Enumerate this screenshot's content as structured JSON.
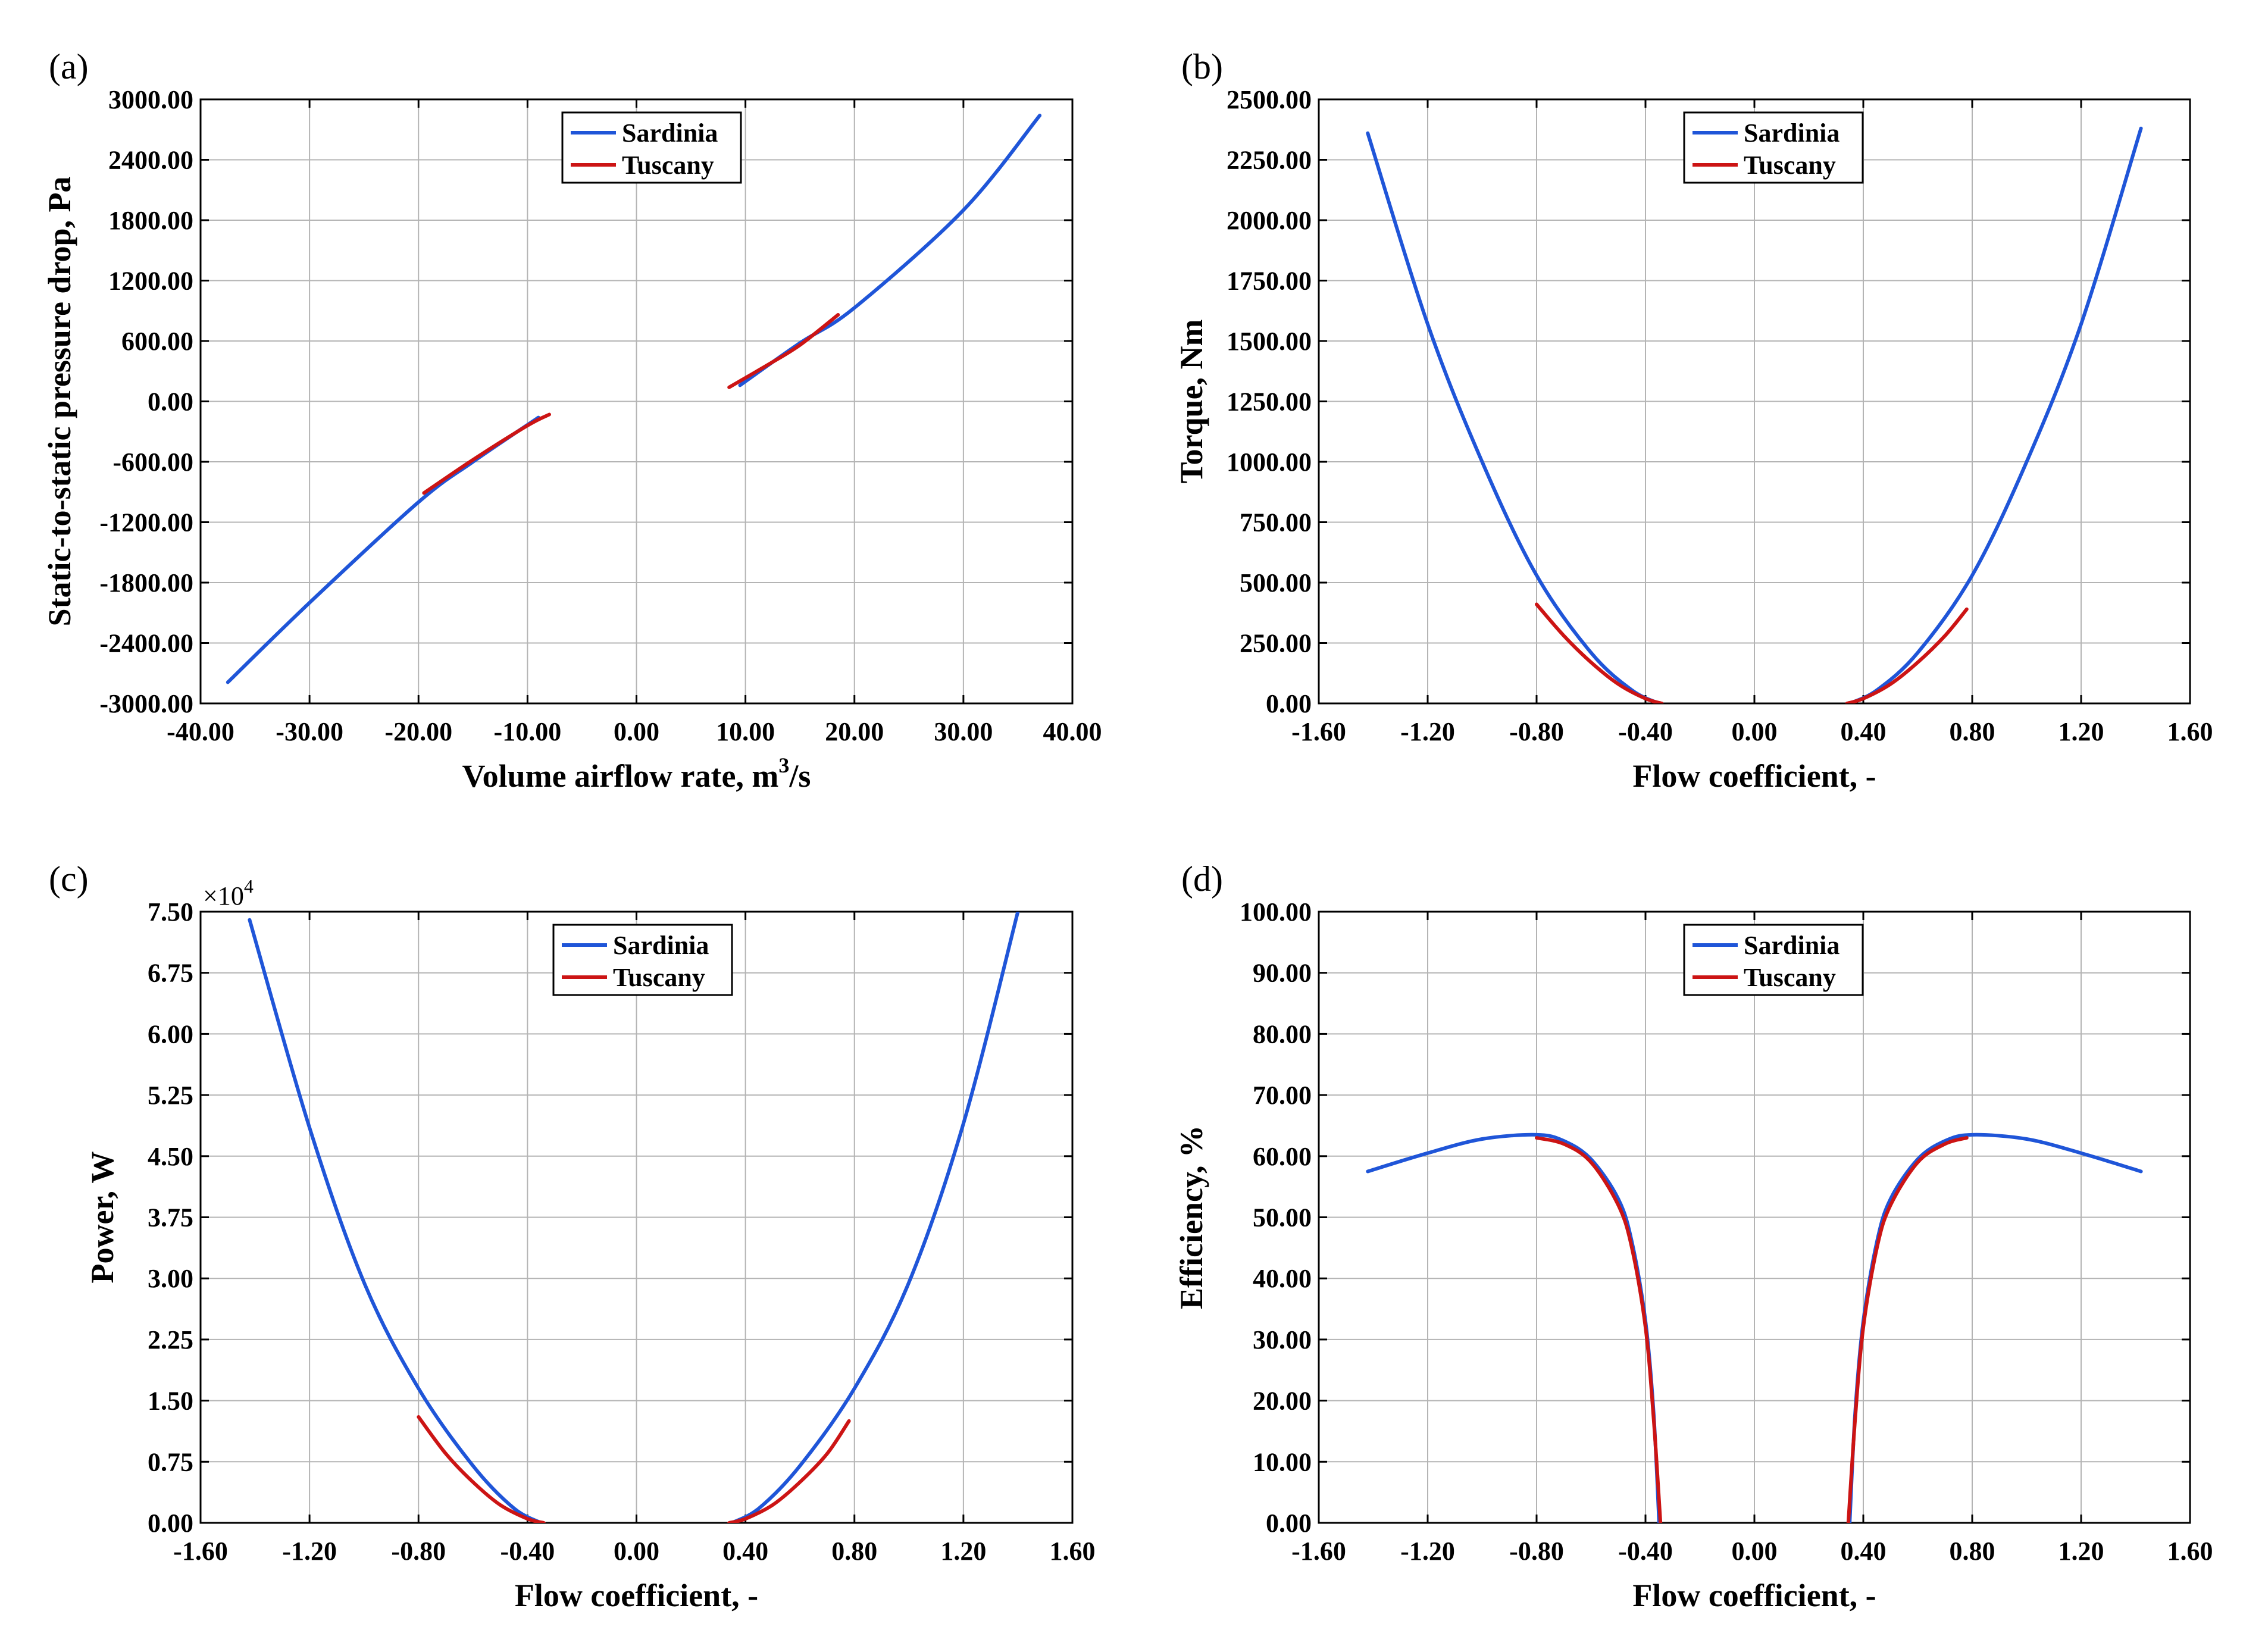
{
  "colors": {
    "sardinia": "#1f55d8",
    "tuscany": "#cc1414",
    "grid": "#b4b4b4",
    "axis": "#000000"
  },
  "chart_data": [
    {
      "type": "line",
      "panel_label": "(a)",
      "xlabel": "Volume airflow rate, m",
      "xlabel_sup": "3",
      "xlabel_suffix": "/s",
      "ylabel": "Static-to-static pressure drop, Pa",
      "xlim": [
        -40,
        40
      ],
      "ylim": [
        -3000,
        3000
      ],
      "xticks": [
        -40,
        -30,
        -20,
        -10,
        0,
        10,
        20,
        30,
        40
      ],
      "xtick_labels": [
        "-40.00",
        "-30.00",
        "-20.00",
        "-10.00",
        "0.00",
        "10.00",
        "20.00",
        "30.00",
        "40.00"
      ],
      "yticks": [
        -3000,
        -2400,
        -1800,
        -1200,
        -600,
        0,
        600,
        1200,
        1800,
        2400,
        3000
      ],
      "ytick_labels": [
        "-3000.00",
        "-2400.00",
        "-1800.00",
        "-1200.00",
        "-600.00",
        "0.00",
        "600.00",
        "1200.00",
        "1800.00",
        "2400.00",
        "3000.00"
      ],
      "legend": [
        "Sardinia",
        "Tuscany"
      ],
      "series": [
        {
          "name": "Sardinia",
          "color_key": "sardinia",
          "segments": [
            [
              [
                -37.5,
                -2790
              ],
              [
                -30,
                -2000
              ],
              [
                -20,
                -1000
              ],
              [
                -15,
                -600
              ],
              [
                -9,
                -160
              ]
            ],
            [
              [
                9.5,
                160
              ],
              [
                15,
                580
              ],
              [
                20,
                930
              ],
              [
                30,
                1900
              ],
              [
                37,
                2840
              ]
            ]
          ]
        },
        {
          "name": "Tuscany",
          "color_key": "tuscany",
          "segments": [
            [
              [
                -19.5,
                -910
              ],
              [
                -15,
                -580
              ],
              [
                -10,
                -240
              ],
              [
                -8,
                -130
              ]
            ],
            [
              [
                8.5,
                140
              ],
              [
                12,
                360
              ],
              [
                15,
                560
              ],
              [
                18.5,
                860
              ]
            ]
          ]
        }
      ]
    },
    {
      "type": "line",
      "panel_label": "(b)",
      "xlabel": "Flow coefficient, -",
      "ylabel": "Torque, Nm",
      "xlim": [
        -1.6,
        1.6
      ],
      "ylim": [
        0,
        2500
      ],
      "xticks": [
        -1.6,
        -1.2,
        -0.8,
        -0.4,
        0,
        0.4,
        0.8,
        1.2,
        1.6
      ],
      "xtick_labels": [
        "-1.60",
        "-1.20",
        "-0.80",
        "-0.40",
        "0.00",
        "0.40",
        "0.80",
        "1.20",
        "1.60"
      ],
      "yticks": [
        0,
        250,
        500,
        750,
        1000,
        1250,
        1500,
        1750,
        2000,
        2250,
        2500
      ],
      "ytick_labels": [
        "0.00",
        "250.00",
        "500.00",
        "750.00",
        "1000.00",
        "1250.00",
        "1500.00",
        "1750.00",
        "2000.00",
        "2250.00",
        "2500.00"
      ],
      "legend": [
        "Sardinia",
        "Tuscany"
      ],
      "series": [
        {
          "name": "Sardinia",
          "color_key": "sardinia",
          "segments": [
            [
              [
                -1.42,
                2360
              ],
              [
                -1.2,
                1570
              ],
              [
                -1.0,
                1000
              ],
              [
                -0.8,
                530
              ],
              [
                -0.6,
                210
              ],
              [
                -0.45,
                55
              ],
              [
                -0.35,
                0
              ]
            ],
            [
              [
                0.35,
                0
              ],
              [
                0.45,
                55
              ],
              [
                0.6,
                210
              ],
              [
                0.8,
                530
              ],
              [
                1.0,
                1000
              ],
              [
                1.2,
                1570
              ],
              [
                1.42,
                2380
              ]
            ]
          ]
        },
        {
          "name": "Tuscany",
          "color_key": "tuscany",
          "segments": [
            [
              [
                -0.8,
                410
              ],
              [
                -0.7,
                280
              ],
              [
                -0.6,
                170
              ],
              [
                -0.5,
                80
              ],
              [
                -0.4,
                20
              ],
              [
                -0.34,
                0
              ]
            ],
            [
              [
                0.34,
                0
              ],
              [
                0.4,
                20
              ],
              [
                0.5,
                80
              ],
              [
                0.6,
                170
              ],
              [
                0.7,
                280
              ],
              [
                0.78,
                390
              ]
            ]
          ]
        }
      ]
    },
    {
      "type": "line",
      "panel_label": "(c)",
      "xlabel": "Flow coefficient, -",
      "ylabel": "Power, W",
      "exponent_label": "×10",
      "exponent_sup": "4",
      "xlim": [
        -1.6,
        1.6
      ],
      "ylim": [
        0,
        7.5
      ],
      "xticks": [
        -1.6,
        -1.2,
        -0.8,
        -0.4,
        0,
        0.4,
        0.8,
        1.2,
        1.6
      ],
      "xtick_labels": [
        "-1.60",
        "-1.20",
        "-0.80",
        "-0.40",
        "0.00",
        "0.40",
        "0.80",
        "1.20",
        "1.60"
      ],
      "yticks": [
        0,
        0.75,
        1.5,
        2.25,
        3.0,
        3.75,
        4.5,
        5.25,
        6.0,
        6.75,
        7.5
      ],
      "ytick_labels": [
        "0.00",
        "0.75",
        "1.50",
        "2.25",
        "3.00",
        "3.75",
        "4.50",
        "5.25",
        "6.00",
        "6.75",
        "7.50"
      ],
      "legend": [
        "Sardinia",
        "Tuscany"
      ],
      "series": [
        {
          "name": "Sardinia",
          "color_key": "sardinia",
          "segments": [
            [
              [
                -1.42,
                7.4
              ],
              [
                -1.2,
                4.85
              ],
              [
                -1.0,
                2.95
              ],
              [
                -0.8,
                1.65
              ],
              [
                -0.6,
                0.7
              ],
              [
                -0.45,
                0.18
              ],
              [
                -0.35,
                0
              ]
            ],
            [
              [
                0.35,
                0
              ],
              [
                0.45,
                0.18
              ],
              [
                0.6,
                0.7
              ],
              [
                0.8,
                1.65
              ],
              [
                1.0,
                2.95
              ],
              [
                1.2,
                4.9
              ],
              [
                1.4,
                7.5
              ]
            ]
          ]
        },
        {
          "name": "Tuscany",
          "color_key": "tuscany",
          "segments": [
            [
              [
                -0.8,
                1.3
              ],
              [
                -0.7,
                0.85
              ],
              [
                -0.6,
                0.5
              ],
              [
                -0.5,
                0.22
              ],
              [
                -0.4,
                0.05
              ],
              [
                -0.34,
                0
              ]
            ],
            [
              [
                0.34,
                0
              ],
              [
                0.4,
                0.05
              ],
              [
                0.5,
                0.22
              ],
              [
                0.6,
                0.5
              ],
              [
                0.7,
                0.85
              ],
              [
                0.78,
                1.25
              ]
            ]
          ]
        }
      ]
    },
    {
      "type": "line",
      "panel_label": "(d)",
      "xlabel": "Flow coefficient, -",
      "ylabel": "Efficiency, %",
      "xlim": [
        -1.6,
        1.6
      ],
      "ylim": [
        0,
        100
      ],
      "xticks": [
        -1.6,
        -1.2,
        -0.8,
        -0.4,
        0,
        0.4,
        0.8,
        1.2,
        1.6
      ],
      "xtick_labels": [
        "-1.60",
        "-1.20",
        "-0.80",
        "-0.40",
        "0.00",
        "0.40",
        "0.80",
        "1.20",
        "1.60"
      ],
      "yticks": [
        0,
        10,
        20,
        30,
        40,
        50,
        60,
        70,
        80,
        90,
        100
      ],
      "ytick_labels": [
        "0.00",
        "10.00",
        "20.00",
        "30.00",
        "40.00",
        "50.00",
        "60.00",
        "70.00",
        "80.00",
        "90.00",
        "100.00"
      ],
      "legend": [
        "Sardinia",
        "Tuscany"
      ],
      "series": [
        {
          "name": "Sardinia",
          "color_key": "sardinia",
          "segments": [
            [
              [
                -1.42,
                57.5
              ],
              [
                -1.2,
                60.5
              ],
              [
                -1.0,
                62.8
              ],
              [
                -0.8,
                63.5
              ],
              [
                -0.7,
                62.5
              ],
              [
                -0.6,
                59.5
              ],
              [
                -0.5,
                53
              ],
              [
                -0.45,
                46
              ],
              [
                -0.4,
                33
              ],
              [
                -0.37,
                18
              ],
              [
                -0.35,
                0
              ]
            ],
            [
              [
                0.35,
                0
              ],
              [
                0.37,
                18
              ],
              [
                0.4,
                33
              ],
              [
                0.45,
                46
              ],
              [
                0.5,
                53
              ],
              [
                0.6,
                59.5
              ],
              [
                0.7,
                62.5
              ],
              [
                0.8,
                63.5
              ],
              [
                1.0,
                62.8
              ],
              [
                1.2,
                60.5
              ],
              [
                1.42,
                57.5
              ]
            ]
          ]
        },
        {
          "name": "Tuscany",
          "color_key": "tuscany",
          "segments": [
            [
              [
                -0.8,
                63
              ],
              [
                -0.7,
                62
              ],
              [
                -0.6,
                59
              ],
              [
                -0.5,
                52
              ],
              [
                -0.45,
                45
              ],
              [
                -0.4,
                32
              ],
              [
                -0.37,
                17
              ],
              [
                -0.345,
                0
              ]
            ],
            [
              [
                0.345,
                0
              ],
              [
                0.37,
                17
              ],
              [
                0.4,
                32
              ],
              [
                0.45,
                45
              ],
              [
                0.5,
                52
              ],
              [
                0.6,
                59
              ],
              [
                0.7,
                62
              ],
              [
                0.78,
                63
              ]
            ]
          ]
        }
      ]
    }
  ]
}
